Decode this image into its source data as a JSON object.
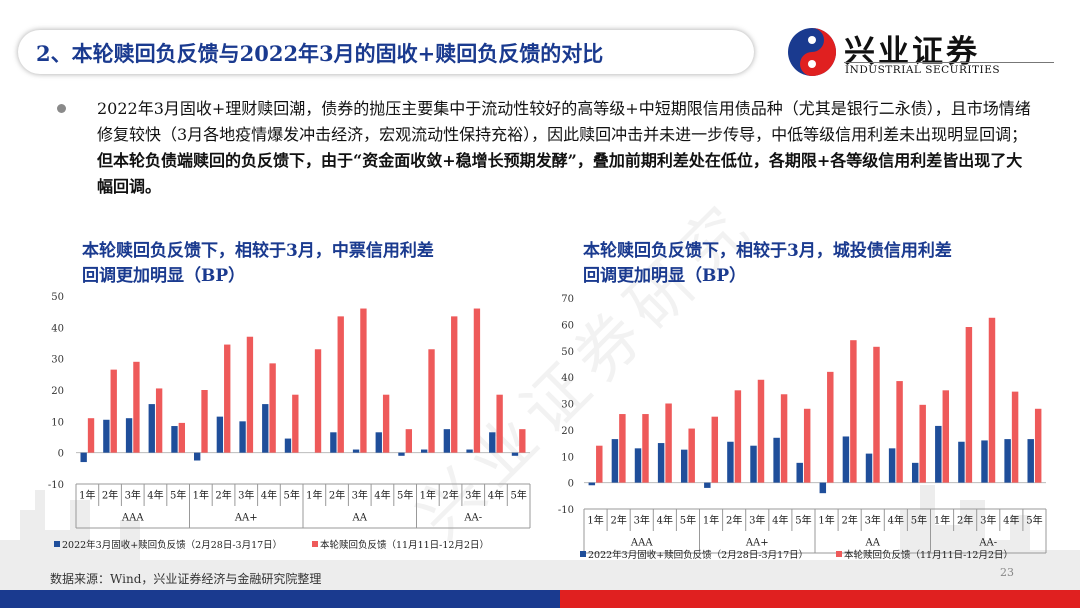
{
  "header": {
    "title": "2、本轮赎回负反馈与2022年3月的固收+赎回负反馈的对比",
    "logo_cn": "兴业证券",
    "logo_en": "INDUSTRIAL SECURITIES"
  },
  "body_text": {
    "normal": "2022年3月固收+理财赎回潮，债券的抛压主要集中于流动性较好的高等级+中短期限信用债品种（尤其是银行二永债），且市场情绪修复较快（3月各地疫情爆发冲击经济，宏观流动性保持充裕），因此赎回冲击并未进一步传导，中低等级信用利差未出现明显回调；",
    "bold": "但本轮负债端赎回的负反馈下，由于“资金面收敛+稳增长预期发酵”，叠加前期利差处在低位，各期限+各等级信用利差皆出现了大幅回调。"
  },
  "watermark": "兴业证券研究",
  "footer": {
    "source": "数据来源：Wind，兴业证券经济与金融研究院整理",
    "page": "23"
  },
  "colors": {
    "series1": "#1f4e9a",
    "series2": "#ee5a5a",
    "title_blue": "#1a3a8f",
    "bar_blue": "#1a3a8f",
    "bar_red": "#e02020"
  },
  "chart_data": [
    {
      "type": "bar",
      "title": "本轮赎回负反馈下，相较于3月，中票信用利差回调更加明显（BP）",
      "title_lines": [
        "本轮赎回负反馈下，相较于3月，中票信用利差",
        "回调更加明显（BP）"
      ],
      "ylim": [
        -10,
        50
      ],
      "yticks": [
        -10,
        0,
        10,
        20,
        30,
        40,
        50
      ],
      "categories": [
        "1年",
        "2年",
        "3年",
        "4年",
        "5年",
        "1年",
        "2年",
        "3年",
        "4年",
        "5年",
        "1年",
        "2年",
        "3年",
        "4年",
        "5年",
        "1年",
        "2年",
        "3年",
        "4年",
        "5年"
      ],
      "groups": [
        "AAA",
        "AA+",
        "AA",
        "AA-"
      ],
      "series": [
        {
          "name": "2022年3月固收+赎回负反馈（2月28日-3月17日）",
          "values": [
            -3,
            10.5,
            11,
            15.5,
            8.5,
            -2.5,
            11.5,
            10,
            15.5,
            4.5,
            0,
            6.5,
            1,
            6.5,
            -1,
            1,
            7.5,
            1,
            6.5,
            -1
          ]
        },
        {
          "name": "本轮赎回负反馈（11月11日-12月2日）",
          "values": [
            11,
            26.5,
            29,
            20.5,
            9.5,
            20,
            34.5,
            37,
            28.5,
            18.5,
            33,
            43.5,
            46,
            18.5,
            7.5,
            33,
            43.5,
            46,
            18.5,
            7.5
          ]
        }
      ],
      "grid": false,
      "legend": "bottom"
    },
    {
      "type": "bar",
      "title": "本轮赎回负反馈下，相较于3月，城投债信用利差回调更加明显（BP）",
      "title_lines": [
        "本轮赎回负反馈下，相较于3月，城投债信用利差",
        "回调更加明显（BP）"
      ],
      "ylim": [
        -10,
        70
      ],
      "yticks": [
        -10,
        0,
        10,
        20,
        30,
        40,
        50,
        60,
        70
      ],
      "categories": [
        "1年",
        "2年",
        "3年",
        "4年",
        "5年",
        "1年",
        "2年",
        "3年",
        "4年",
        "5年",
        "1年",
        "2年",
        "3年",
        "4年",
        "5年",
        "1年",
        "2年",
        "3年",
        "4年",
        "5年"
      ],
      "groups": [
        "AAA",
        "AA+",
        "AA",
        "AA-"
      ],
      "series": [
        {
          "name": "2022年3月固收+赎回负反馈（2月28日-3月17日）",
          "values": [
            -1,
            16.5,
            13,
            15,
            12.5,
            -2,
            15.5,
            14,
            17,
            7.5,
            -4,
            17.5,
            11,
            13,
            7.5,
            21.5,
            15.5,
            16,
            16.5,
            16.5
          ]
        },
        {
          "name": "本轮赎回负反馈（11月11日-12月2日）",
          "values": [
            14,
            26,
            26,
            30,
            20.5,
            25,
            35,
            39,
            33.5,
            28,
            42,
            54,
            51.5,
            38.5,
            29.5,
            35,
            59,
            62.5,
            34.5,
            28
          ]
        }
      ],
      "grid": false,
      "legend": "bottom"
    }
  ]
}
